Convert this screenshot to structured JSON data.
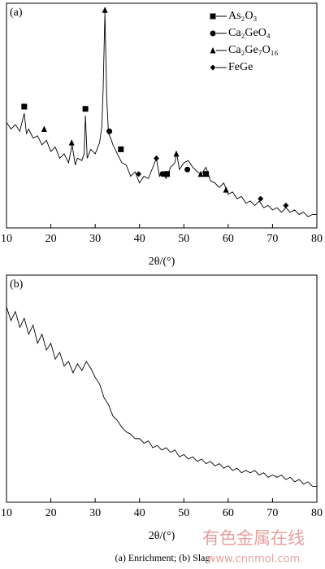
{
  "chart_data": [
    {
      "type": "line",
      "panel_label": "(a)",
      "x_label": "2θ/(°)",
      "color": "#000000",
      "xlim": [
        10,
        80
      ],
      "ylim": [
        0,
        100
      ],
      "xticks": [
        10,
        20,
        30,
        40,
        50,
        60,
        70,
        80
      ],
      "x": [
        10,
        11,
        12,
        13,
        14,
        14.5,
        15,
        16,
        17,
        18,
        19,
        20,
        21,
        22,
        23,
        24,
        24.8,
        25.5,
        26,
        27,
        27.5,
        27.8,
        28.2,
        29,
        30,
        31,
        31.5,
        31.8,
        32.2,
        32.6,
        33,
        33.5,
        34,
        35,
        36,
        37,
        38,
        39,
        40,
        41,
        42,
        43,
        43.8,
        44.5,
        45,
        46,
        47,
        48,
        48.3,
        49,
        50,
        51,
        52,
        53,
        54,
        55,
        56,
        57,
        58,
        59,
        60,
        61,
        62,
        63,
        64,
        65,
        66,
        67,
        68,
        69,
        70,
        71,
        72,
        73,
        74,
        75,
        76,
        77,
        78,
        79,
        80
      ],
      "values": [
        47,
        44,
        46,
        43,
        51,
        42,
        44,
        40,
        41,
        37,
        39,
        34,
        36,
        31,
        33,
        29,
        37,
        28,
        31,
        30,
        33,
        50,
        31,
        35,
        33,
        38,
        45,
        62,
        96,
        58,
        42,
        40,
        37,
        33,
        29,
        28,
        23,
        25,
        20,
        23,
        22,
        27,
        31,
        23,
        25,
        22,
        27,
        29,
        34,
        26,
        29,
        30,
        27,
        25,
        24,
        27,
        21,
        20,
        18,
        20,
        15,
        16,
        13,
        14,
        11,
        12,
        10,
        12,
        9,
        10,
        8,
        9,
        7,
        9,
        7,
        8,
        6,
        7,
        5,
        6,
        6
      ],
      "phases": [
        {
          "name": "As₂O₃",
          "symbol": "square",
          "x": [
            14,
            27.8,
            35.8,
            46.2,
            55
          ],
          "values": [
            54,
            53,
            35,
            24,
            24
          ]
        },
        {
          "name": "Ca₂GeO₄",
          "symbol": "circle",
          "x": [
            33.2,
            45.2,
            50.8
          ],
          "values": [
            43,
            24,
            26
          ]
        },
        {
          "name": "Ca₂Ge₇O₁₆",
          "symbol": "triangle",
          "x": [
            18.5,
            24.7,
            32.2,
            48.3,
            53.8,
            59.5
          ],
          "values": [
            44,
            38,
            97,
            33,
            24,
            17
          ]
        },
        {
          "name": "FeGe",
          "symbol": "diamond",
          "x": [
            39.8,
            43.8,
            67.3,
            73
          ],
          "values": [
            24,
            31,
            13,
            10
          ]
        }
      ]
    },
    {
      "type": "line",
      "panel_label": "(b)",
      "x_label": "2θ/(°)",
      "color": "#000000",
      "xlim": [
        10,
        80
      ],
      "ylim": [
        0,
        100
      ],
      "xticks": [
        10,
        20,
        30,
        40,
        50,
        60,
        70,
        80
      ],
      "x": [
        10,
        11,
        12,
        13,
        14,
        15,
        16,
        17,
        18,
        19,
        20,
        21,
        22,
        23,
        24,
        25,
        26,
        27,
        28,
        29,
        30,
        31,
        32,
        33,
        34,
        35,
        36,
        37,
        38,
        39,
        40,
        41,
        42,
        43,
        44,
        45,
        46,
        47,
        48,
        49,
        50,
        51,
        52,
        53,
        54,
        55,
        56,
        57,
        58,
        59,
        60,
        61,
        62,
        63,
        64,
        65,
        66,
        67,
        68,
        69,
        70,
        71,
        72,
        73,
        74,
        75,
        76,
        77,
        78,
        79,
        80
      ],
      "values": [
        86,
        80,
        84,
        77,
        81,
        74,
        78,
        70,
        74,
        67,
        70,
        63,
        66,
        60,
        62,
        57,
        61,
        58,
        62,
        59,
        55,
        52,
        46,
        43,
        38,
        36,
        33,
        31,
        30,
        28,
        28,
        26,
        27,
        24,
        25,
        23,
        24,
        22,
        23,
        20,
        21,
        19,
        20,
        18,
        19,
        17,
        18,
        16,
        17,
        15,
        16,
        14,
        15,
        13,
        14,
        13,
        14,
        12,
        13,
        11,
        12,
        11,
        12,
        10,
        11,
        9,
        10,
        8,
        9,
        7,
        7
      ]
    }
  ],
  "caption": "(a)  Enrichment; (b) Slag",
  "watermark": {
    "title": "有色金属在线",
    "url": "www.cnnmol.com"
  }
}
